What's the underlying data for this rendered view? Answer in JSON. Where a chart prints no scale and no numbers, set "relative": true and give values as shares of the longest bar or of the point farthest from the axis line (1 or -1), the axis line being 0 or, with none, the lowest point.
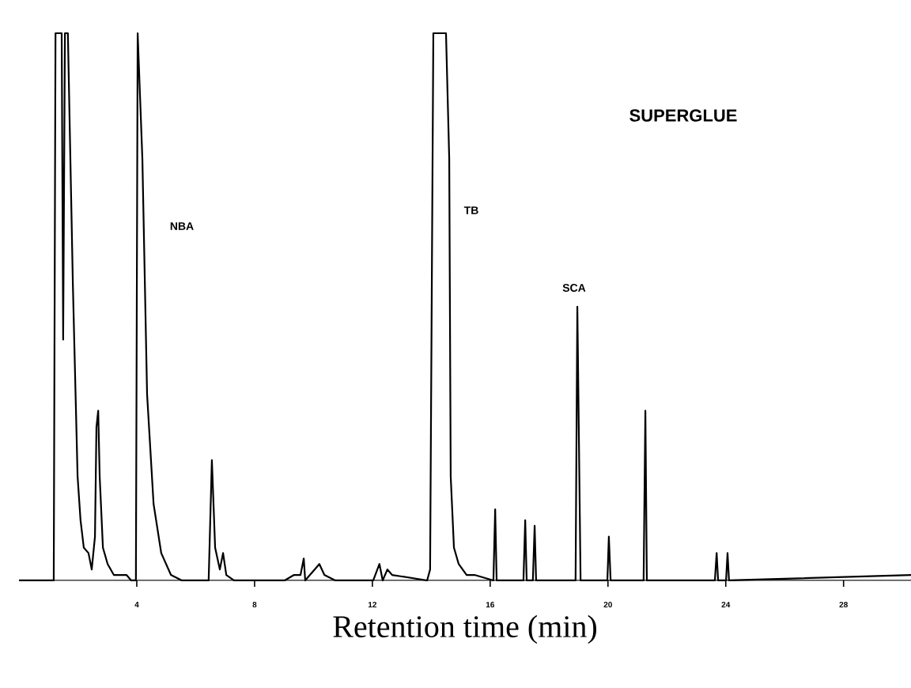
{
  "chart_data": {
    "type": "line",
    "title": "SUPERGLUE",
    "xlabel": "Retention time (min)",
    "relative": true,
    "annotations": [
      "NBA",
      "TB",
      "SCA"
    ],
    "xlim": [
      0,
      30.29
    ],
    "xticks": [
      4,
      8,
      12,
      16,
      20,
      24,
      28
    ],
    "color": "#000000",
    "x": [
      0,
      1.18,
      1.24,
      1.45,
      1.5,
      1.56,
      1.66,
      1.83,
      1.99,
      2.09,
      2.2,
      2.36,
      2.47,
      2.58,
      2.63,
      2.69,
      2.74,
      2.85,
      3.01,
      3.22,
      3.49,
      3.65,
      3.81,
      3.97,
      4.03,
      4.19,
      4.35,
      4.57,
      4.83,
      5.16,
      5.53,
      6.44,
      6.55,
      6.66,
      6.82,
      6.93,
      7.04,
      7.3,
      9.02,
      9.34,
      9.56,
      9.67,
      9.72,
      9.88,
      10.2,
      10.37,
      10.74,
      12.03,
      12.24,
      12.35,
      12.51,
      12.67,
      13.86,
      13.96,
      14.07,
      14.18,
      14.5,
      14.61,
      14.66,
      14.77,
      14.93,
      15.2,
      15.47,
      16.11,
      16.17,
      16.22,
      17.13,
      17.19,
      17.24,
      17.45,
      17.51,
      17.56,
      18.9,
      18.96,
      19.07,
      19.98,
      20.03,
      20.09,
      21.21,
      21.27,
      21.32,
      23.63,
      23.69,
      23.74,
      24.01,
      24.06,
      24.11,
      30.29
    ],
    "values": [
      0,
      0,
      1,
      1,
      0.44,
      1,
      1,
      0.54,
      0.19,
      0.11,
      0.06,
      0.05,
      0.02,
      0.08,
      0.28,
      0.31,
      0.19,
      0.06,
      0.03,
      0.01,
      0.01,
      0.01,
      0,
      0,
      1,
      0.77,
      0.34,
      0.14,
      0.05,
      0.01,
      0,
      0,
      0.22,
      0.06,
      0.02,
      0.05,
      0.01,
      0,
      0,
      0.01,
      0.01,
      0.04,
      0,
      0.01,
      0.03,
      0.01,
      0,
      0,
      0.03,
      0,
      0.02,
      0.01,
      0,
      0.02,
      1,
      1,
      1,
      0.77,
      0.19,
      0.06,
      0.03,
      0.01,
      0.01,
      0,
      0.13,
      0,
      0,
      0.11,
      0,
      0,
      0.1,
      0,
      0,
      0.5,
      0,
      0,
      0.08,
      0,
      0,
      0.31,
      0,
      0,
      0.05,
      0,
      0,
      0.05,
      0,
      0.01
    ]
  }
}
